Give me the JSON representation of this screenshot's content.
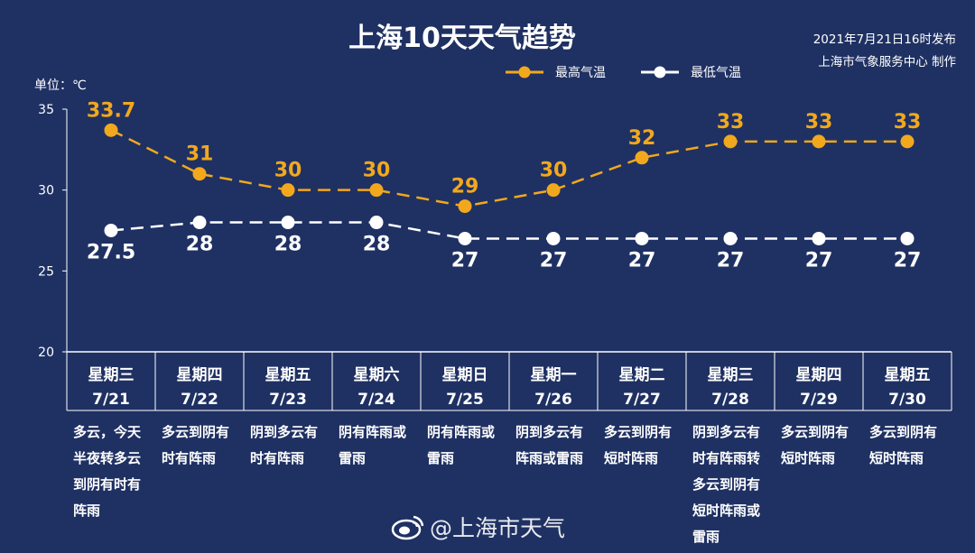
{
  "header": {
    "title": "上海10天天气趋势",
    "publish_time": "2021年7月21日16时发布",
    "producer": "上海市气象服务中心 制作",
    "unit": "单位：℃"
  },
  "watermark": "@上海市天气",
  "colors": {
    "high": "#f2a81d",
    "low": "#ffffff",
    "background": "#1f3163"
  },
  "chart_data": {
    "type": "line",
    "title": "上海10天天气趋势",
    "ylabel": "单位：℃",
    "ylim": [
      20,
      35
    ],
    "y_ticks": [
      "20",
      "25",
      "30",
      "35"
    ],
    "days": [
      "星期三",
      "星期四",
      "星期五",
      "星期六",
      "星期日",
      "星期一",
      "星期二",
      "星期三",
      "星期四",
      "星期五"
    ],
    "dates": [
      "7/21",
      "7/22",
      "7/23",
      "7/24",
      "7/25",
      "7/26",
      "7/27",
      "7/28",
      "7/29",
      "7/30"
    ],
    "descriptions": [
      [
        "多云，今天",
        "半夜转多云",
        "到阴有时有",
        "阵雨"
      ],
      [
        "多云到阴有",
        "时有阵雨"
      ],
      [
        "阴到多云有",
        "时有阵雨"
      ],
      [
        "阴有阵雨或",
        "雷雨"
      ],
      [
        "阴有阵雨或",
        "雷雨"
      ],
      [
        "阴到多云有",
        "阵雨或雷雨"
      ],
      [
        "多云到阴有",
        "短时阵雨"
      ],
      [
        "阴到多云有",
        "时有阵雨转",
        "多云到阴有",
        "短时阵雨或",
        "雷雨"
      ],
      [
        "多云到阴有",
        "短时阵雨"
      ],
      [
        "多云到阴有",
        "短时阵雨"
      ]
    ],
    "series": [
      {
        "name": "最高气温",
        "values": [
          33.7,
          31,
          30,
          30,
          29,
          30,
          32,
          33,
          33,
          33
        ],
        "labels": [
          "33.7",
          "31",
          "30",
          "30",
          "29",
          "30",
          "32",
          "33",
          "33",
          "33"
        ]
      },
      {
        "name": "最低气温",
        "values": [
          27.5,
          28,
          28,
          28,
          27,
          27,
          27,
          27,
          27,
          27
        ],
        "labels": [
          "27.5",
          "28",
          "28",
          "28",
          "27",
          "27",
          "27",
          "27",
          "27",
          "27"
        ]
      }
    ],
    "legend": "top-center",
    "grid": false
  }
}
